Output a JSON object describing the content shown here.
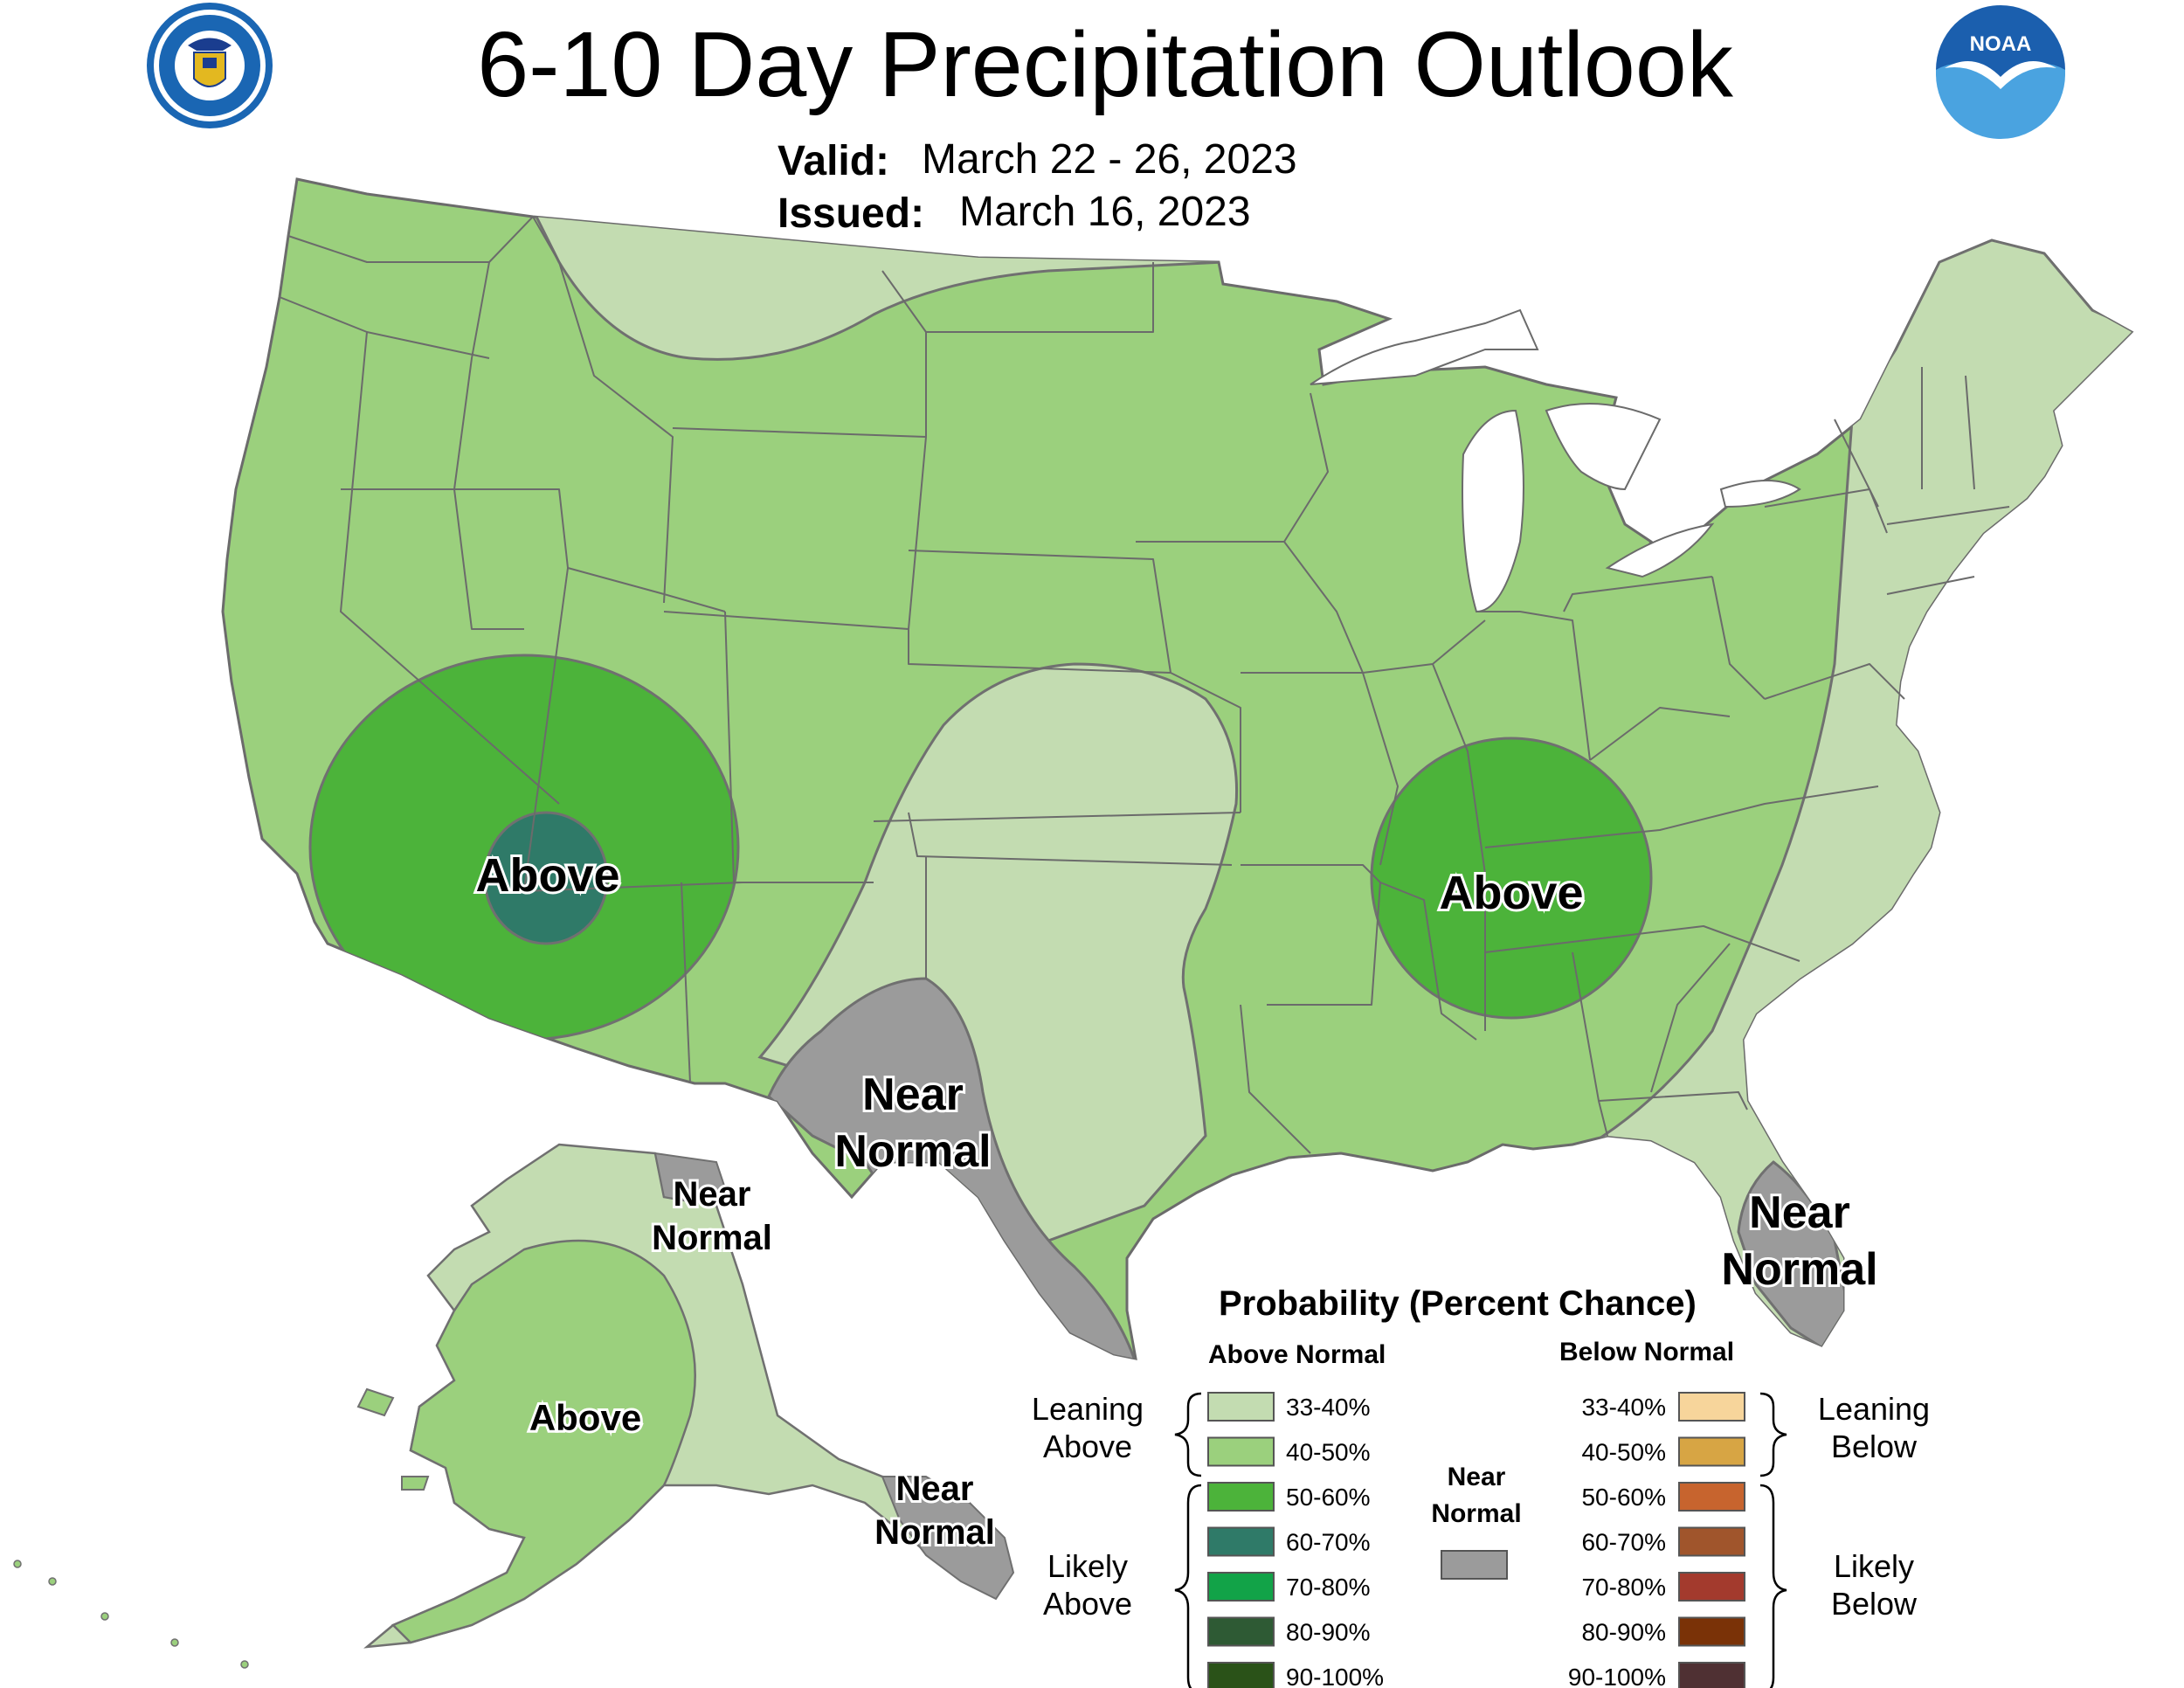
{
  "header": {
    "title": "6-10 Day Precipitation Outlook",
    "valid_label": "Valid:",
    "valid_value": "March 22 - 26, 2023",
    "issued_label": "Issued:",
    "issued_value": "March 16, 2023"
  },
  "logos": {
    "commerce_seal": "DEPARTMENT OF COMMERCE · UNITED STATES OF AMERICA",
    "noaa_logo": "NOAA"
  },
  "colors": {
    "leaning_above_33_40": "#c3dcb1",
    "above_40_50": "#9bd07d",
    "likely_above_50_60": "#4cb33a",
    "likely_above_60_70": "#2f7a68",
    "likely_above_70_80": "#12a348",
    "likely_above_80_90": "#2e5a34",
    "likely_above_90_100": "#2a5218",
    "near_normal": "#9b9b9b",
    "below_33_40": "#f7d59b",
    "below_40_50": "#d7a544",
    "below_50_60": "#c7642e",
    "below_60_70": "#a0552c",
    "below_70_80": "#a33a2d",
    "below_80_90": "#7a3207",
    "below_90_100": "#4f3033",
    "water": "#ffffff",
    "state_border": "#6b6b6b"
  },
  "map_labels": {
    "southwest": "Above",
    "tennessee_valley": "Above",
    "texas_west": [
      "Near",
      "Normal"
    ],
    "florida": [
      "Near",
      "Normal"
    ],
    "alaska_northeast": [
      "Near",
      "Normal"
    ],
    "alaska_west": "Above",
    "alaska_southeast": [
      "Near",
      "Normal"
    ]
  },
  "legend": {
    "title": "Probability (Percent Chance)",
    "above_header": "Above Normal",
    "below_header": "Below Normal",
    "near_header": [
      "Near",
      "Normal"
    ],
    "leaning_above": [
      "Leaning",
      "Above"
    ],
    "likely_above": [
      "Likely",
      "Above"
    ],
    "leaning_below": [
      "Leaning",
      "Below"
    ],
    "likely_below": [
      "Likely",
      "Below"
    ],
    "above_rows": [
      {
        "label": "33-40%",
        "color": "#c3dcb1"
      },
      {
        "label": "40-50%",
        "color": "#9bd07d"
      },
      {
        "label": "50-60%",
        "color": "#4cb33a"
      },
      {
        "label": "60-70%",
        "color": "#2f7a68"
      },
      {
        "label": "70-80%",
        "color": "#12a348"
      },
      {
        "label": "80-90%",
        "color": "#2e5a34"
      },
      {
        "label": "90-100%",
        "color": "#2a5218"
      }
    ],
    "below_rows": [
      {
        "label": "33-40%",
        "color": "#f7d59b"
      },
      {
        "label": "40-50%",
        "color": "#d7a544"
      },
      {
        "label": "50-60%",
        "color": "#c7642e"
      },
      {
        "label": "60-70%",
        "color": "#a0552c"
      },
      {
        "label": "70-80%",
        "color": "#a33a2d"
      },
      {
        "label": "80-90%",
        "color": "#7a3207"
      },
      {
        "label": "90-100%",
        "color": "#4f3033"
      }
    ],
    "near_color": "#9b9b9b"
  }
}
